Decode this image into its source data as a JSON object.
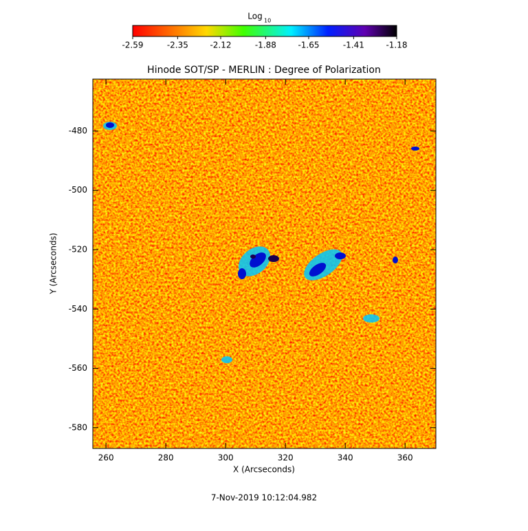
{
  "chart_data": {
    "type": "heatmap",
    "title": "Hinode SOT/SP - MERLIN : Degree of Polarization",
    "x_label": "X (Arcseconds)",
    "y_label": "Y (Arcseconds)",
    "xlim": [
      255.6,
      370.3
    ],
    "xticks": [
      260,
      280,
      300,
      320,
      340,
      360
    ],
    "ylim": [
      -587,
      -462.5
    ],
    "yticks": [
      -480,
      -500,
      -520,
      -540,
      -560,
      -580
    ],
    "colorbar": {
      "label": "Log",
      "label_subscript": "10",
      "lim": [
        -2.59,
        -1.18
      ],
      "ticks": [
        -2.59,
        -2.35,
        -2.12,
        -1.88,
        -1.65,
        -1.41,
        -1.18
      ]
    },
    "footer": "7-Nov-2019 10:12:04.982"
  }
}
